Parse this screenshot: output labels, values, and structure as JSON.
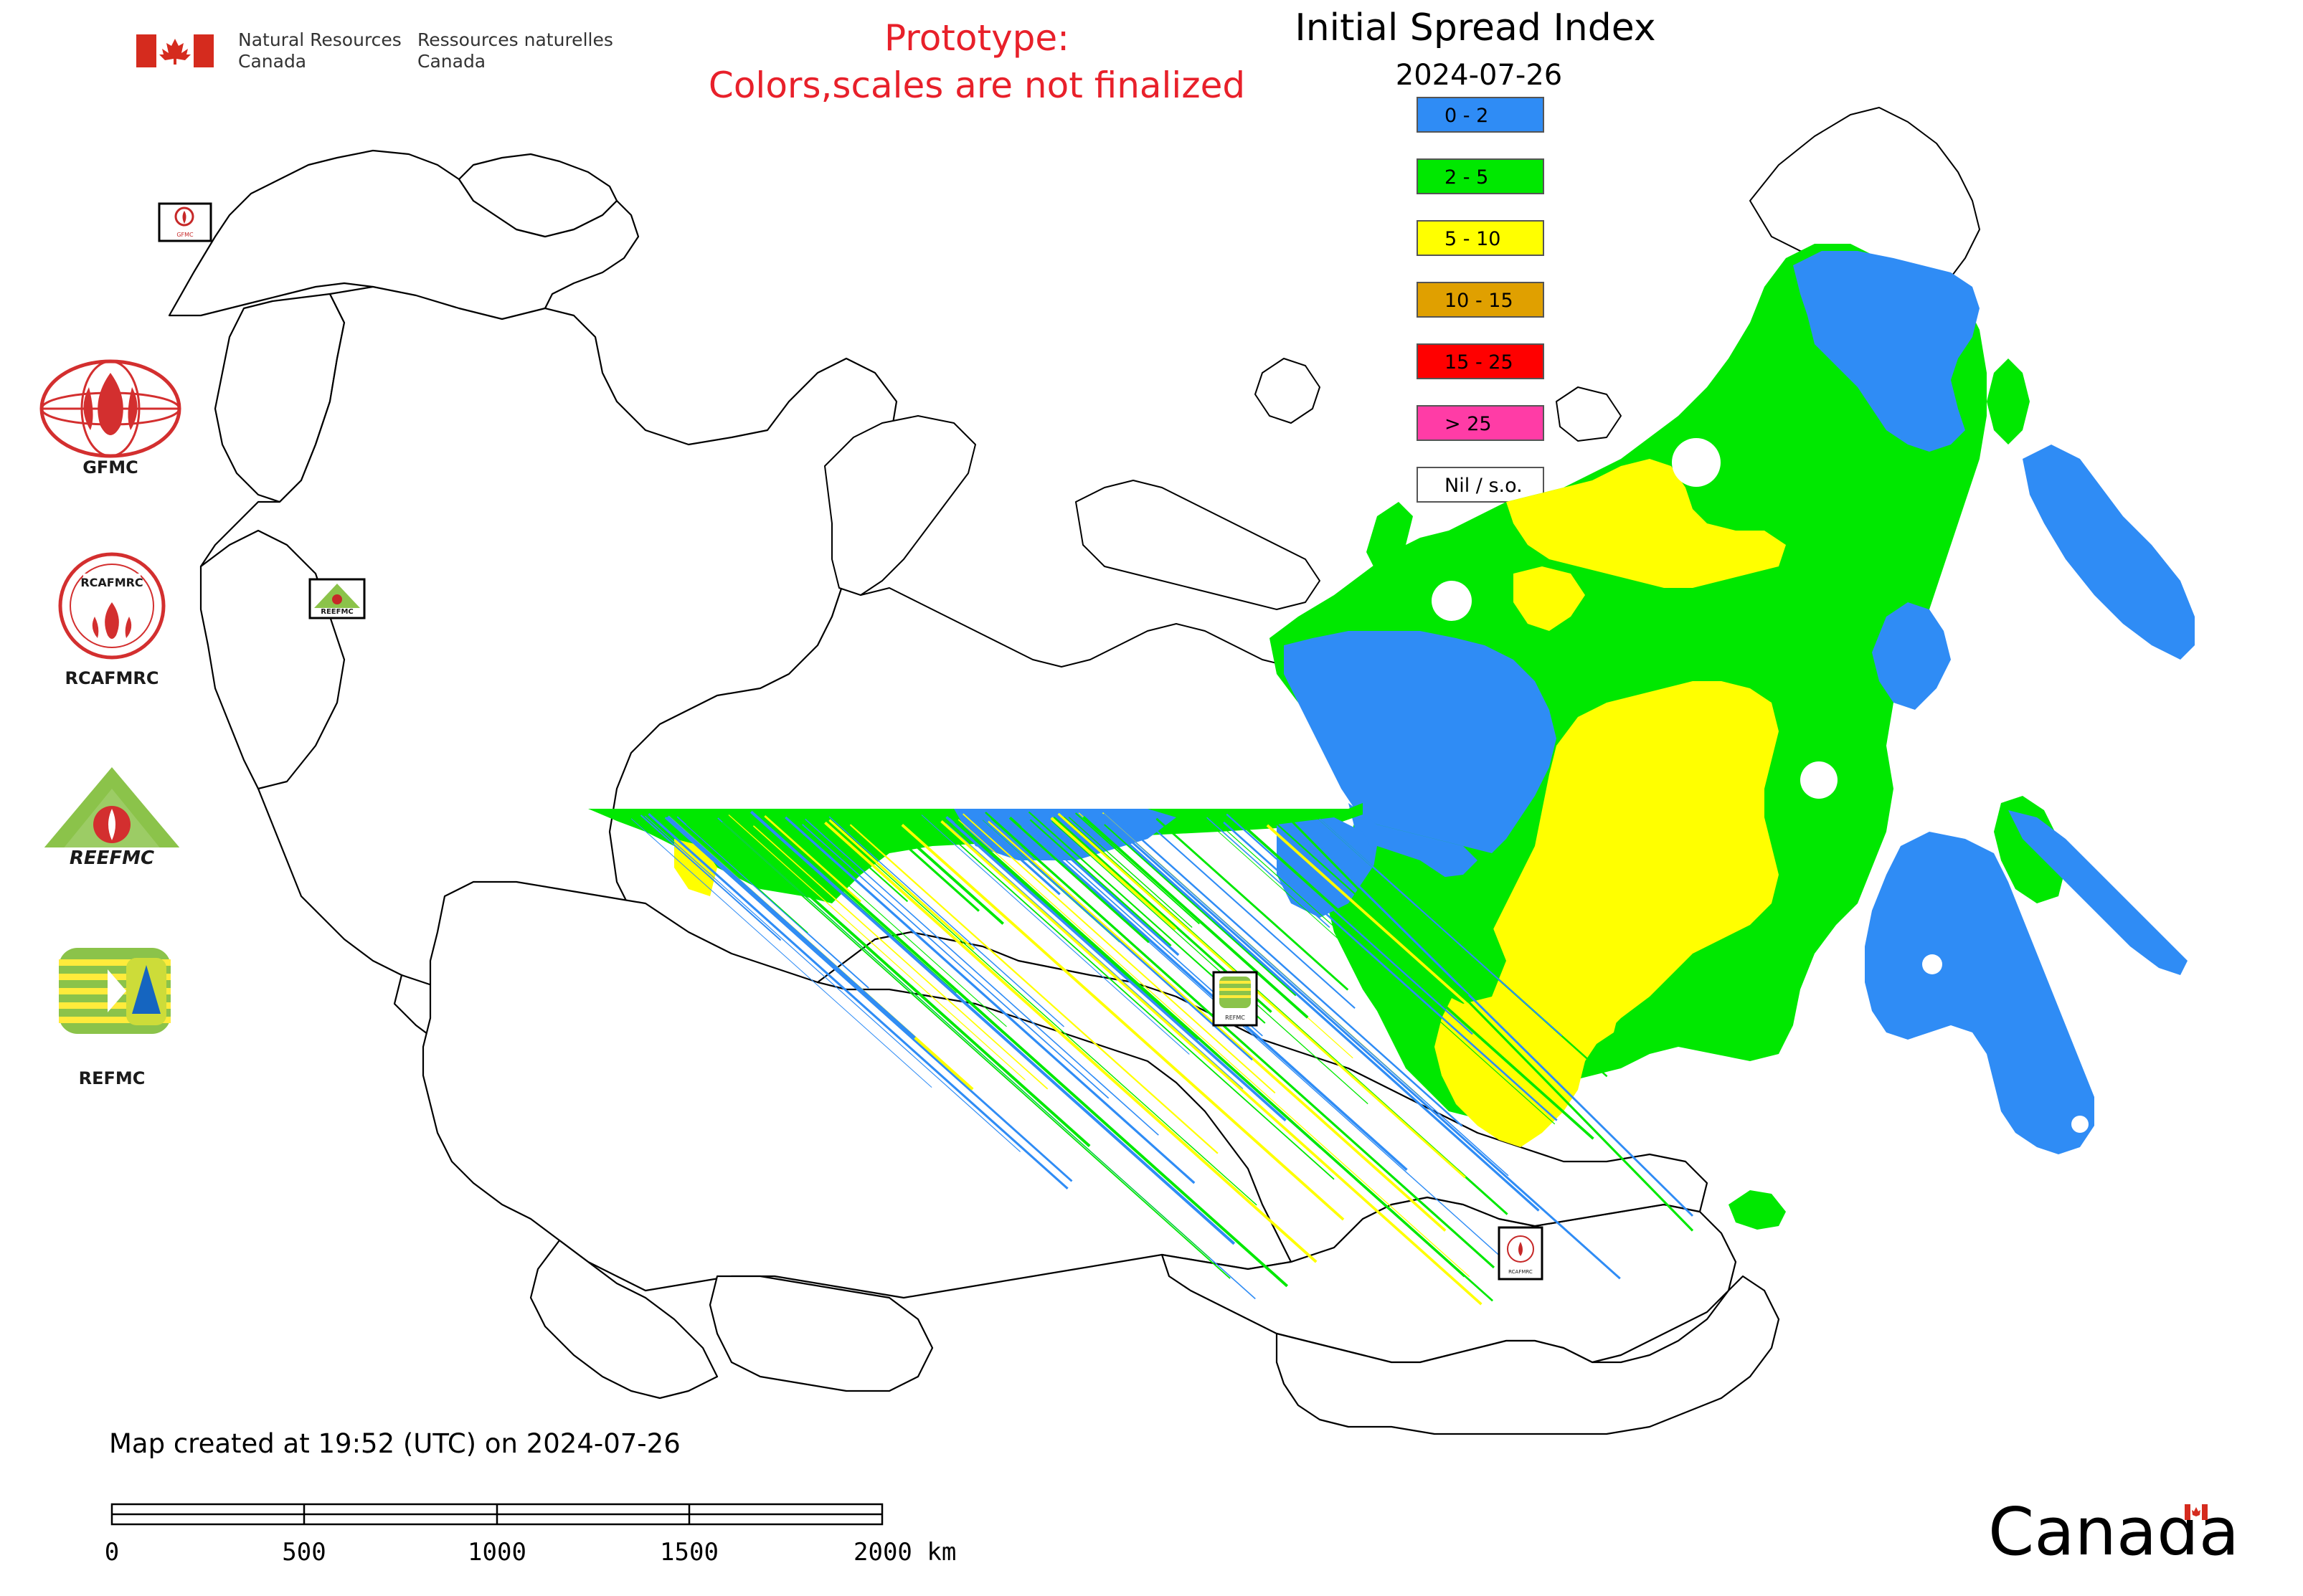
{
  "header": {
    "agency_en_line1": "Natural Resources",
    "agency_en_line2": "Canada",
    "agency_fr_line1": "Ressources naturelles",
    "agency_fr_line2": "Canada",
    "prototype_line1": "Prototype:",
    "prototype_line2": "Colors,scales are not finalized"
  },
  "title": "Initial Spread Index",
  "date": "2024-07-26",
  "legend": [
    {
      "label": "0 - 2",
      "color": "#2f8cf5"
    },
    {
      "label": "2 - 5",
      "color": "#00e800"
    },
    {
      "label": "5 - 10",
      "color": "#ffff00"
    },
    {
      "label": "10 - 15",
      "color": "#e0a000"
    },
    {
      "label": "15 - 25",
      "color": "#ff0000"
    },
    {
      "label": "> 25",
      "color": "#ff3ca6"
    },
    {
      "label": "Nil / s.o.",
      "color": "#ffffff"
    }
  ],
  "logos": [
    {
      "name": "GFMC"
    },
    {
      "name": "RCAFMRC"
    },
    {
      "name": "REEFMC"
    },
    {
      "name": "REFMC"
    }
  ],
  "map_markers": [
    {
      "label": "GFMC"
    },
    {
      "label": "REEFMC"
    },
    {
      "label": "REFMC"
    },
    {
      "label": "RCAFMRC"
    }
  ],
  "footer": {
    "created_text": "Map created at 19:52 (UTC) on 2024-07-26",
    "scale_ticks": [
      "0",
      "500",
      "1000",
      "1500",
      "2000 km"
    ],
    "wordmark": "Canada"
  }
}
